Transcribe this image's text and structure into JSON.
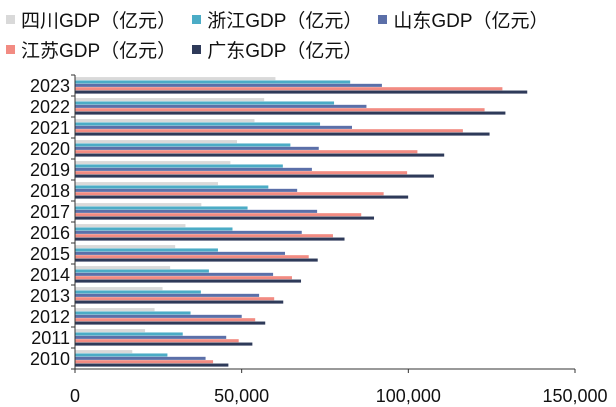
{
  "chart_data": {
    "type": "bar",
    "orientation": "horizontal",
    "categories": [
      "2023",
      "2022",
      "2021",
      "2020",
      "2019",
      "2018",
      "2017",
      "2016",
      "2015",
      "2014",
      "2013",
      "2012",
      "2011",
      "2010"
    ],
    "series": [
      {
        "name": "四川GDP（亿元）",
        "color": "#d9d9d9",
        "values": [
          60133,
          56750,
          53851,
          48599,
          46616,
          42902,
          37905,
          33138,
          30053,
          28537,
          26261,
          23873,
          21027,
          17185
        ]
      },
      {
        "name": "浙江GDP（亿元）",
        "color": "#4bacc6",
        "values": [
          82553,
          77715,
          73516,
          64613,
          62352,
          58003,
          51768,
          47251,
          42886,
          40173,
          37757,
          34665,
          32319,
          27722
        ]
      },
      {
        "name": "山东GDP（亿元）",
        "color": "#5b6fa8",
        "values": [
          92069,
          87435,
          83096,
          73129,
          71067,
          66649,
          72634,
          68024,
          63002,
          59426,
          55230,
          50013,
          45362,
          39170
        ]
      },
      {
        "name": "江苏GDP（亿元）",
        "color": "#f28b82",
        "values": [
          128222,
          122876,
          116364,
          102719,
          99632,
          92595,
          85870,
          77388,
          70116,
          65088,
          59753,
          54058,
          49110,
          41425
        ]
      },
      {
        "name": "广东GDP（亿元）",
        "color": "#2e3a59",
        "values": [
          135673,
          129119,
          124370,
          110761,
          107671,
          99945,
          89705,
          80855,
          72813,
          67810,
          62475,
          57068,
          53210,
          46013
        ]
      }
    ],
    "xlim": [
      0,
      150000
    ],
    "xticks": [
      "0",
      "50,000",
      "100,000",
      "150,000"
    ],
    "grid": false,
    "legend_position": "top"
  }
}
